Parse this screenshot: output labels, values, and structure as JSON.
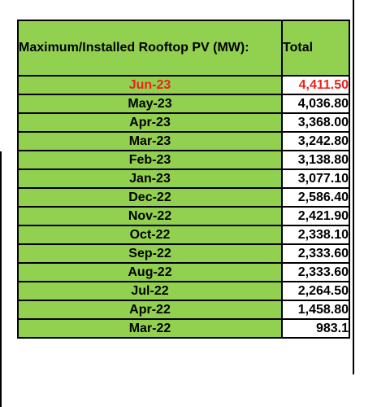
{
  "table": {
    "header_label": "Maximum/Installed Rooftop PV (MW):",
    "header_total": "Total",
    "rows": [
      {
        "month": "Jun-23",
        "total": "4,411.50"
      },
      {
        "month": "May-23",
        "total": "4,036.80"
      },
      {
        "month": "Apr-23",
        "total": "3,368.00"
      },
      {
        "month": "Mar-23",
        "total": "3,242.80"
      },
      {
        "month": "Feb-23",
        "total": "3,138.80"
      },
      {
        "month": "Jan-23",
        "total": "3,077.10"
      },
      {
        "month": "Dec-22",
        "total": "2,586.40"
      },
      {
        "month": "Nov-22",
        "total": "2,421.90"
      },
      {
        "month": "Oct-22",
        "total": "2,338.10"
      },
      {
        "month": "Sep-22",
        "total": "2,333.60"
      },
      {
        "month": "Aug-22",
        "total": "2,333.60"
      },
      {
        "month": "Jul-22",
        "total": "2,264.50"
      },
      {
        "month": "Apr-22",
        "total": "1,458.80"
      },
      {
        "month": "Mar-22",
        "total": "983.1"
      }
    ]
  },
  "colors": {
    "month_cell_fill": "#92d050",
    "value_cell_fill": "#ffffff",
    "highlight_text": "#e8261c",
    "border": "#000000"
  }
}
